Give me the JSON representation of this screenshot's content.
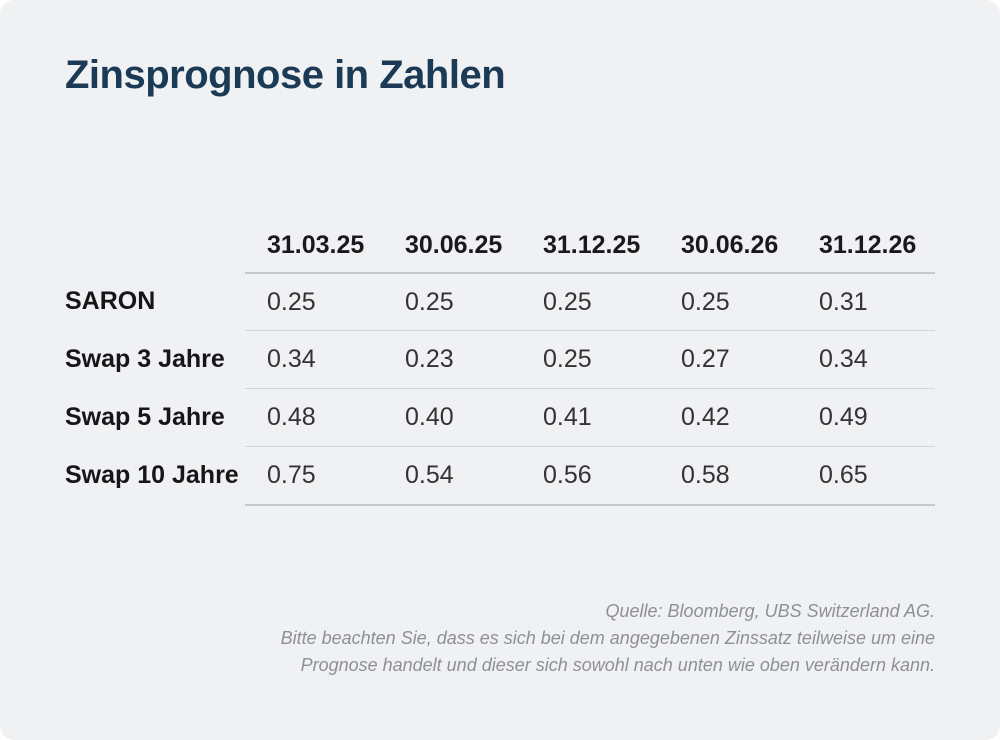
{
  "title": "Zinsprognose in Zahlen",
  "colors": {
    "background": "#f0f1f3",
    "title": "#1a3a55",
    "header_text": "#1a1a1c",
    "value_text": "#333335",
    "divider_outer": "#c6c8ca",
    "divider_inner": "#d3d5d7",
    "footer_text": "#8e9094"
  },
  "table": {
    "columns": [
      "31.03.25",
      "30.06.25",
      "31.12.25",
      "30.06.26",
      "31.12.26"
    ],
    "rows": [
      {
        "label": "SARON",
        "values": [
          "0.25",
          "0.25",
          "0.25",
          "0.25",
          "0.31"
        ]
      },
      {
        "label": "Swap 3 Jahre",
        "values": [
          "0.34",
          "0.23",
          "0.25",
          "0.27",
          "0.34"
        ]
      },
      {
        "label": "Swap 5 Jahre",
        "values": [
          "0.48",
          "0.40",
          "0.41",
          "0.42",
          "0.49"
        ]
      },
      {
        "label": "Swap 10 Jahre",
        "values": [
          "0.75",
          "0.54",
          "0.56",
          "0.58",
          "0.65"
        ]
      }
    ]
  },
  "footer": {
    "lines": [
      "Quelle: Bloomberg, UBS Switzerland AG.",
      "Bitte beachten Sie, dass es sich bei dem angegebenen Zinssatz teilweise um eine",
      "Prognose handelt und dieser sich sowohl nach unten wie oben verändern kann."
    ]
  },
  "chart_data": {
    "type": "table",
    "title": "Zinsprognose in Zahlen",
    "categories": [
      "31.03.25",
      "30.06.25",
      "31.12.25",
      "30.06.26",
      "31.12.26"
    ],
    "series": [
      {
        "name": "SARON",
        "values": [
          0.25,
          0.25,
          0.25,
          0.25,
          0.31
        ]
      },
      {
        "name": "Swap 3 Jahre",
        "values": [
          0.34,
          0.23,
          0.25,
          0.27,
          0.34
        ]
      },
      {
        "name": "Swap 5 Jahre",
        "values": [
          0.48,
          0.4,
          0.41,
          0.42,
          0.49
        ]
      },
      {
        "name": "Swap 10 Jahre",
        "values": [
          0.75,
          0.54,
          0.56,
          0.58,
          0.65
        ]
      }
    ],
    "source": "Quelle: Bloomberg, UBS Switzerland AG.",
    "note": "Bitte beachten Sie, dass es sich bei dem angegebenen Zinssatz teilweise um eine Prognose handelt und dieser sich sowohl nach unten wie oben verändern kann."
  }
}
